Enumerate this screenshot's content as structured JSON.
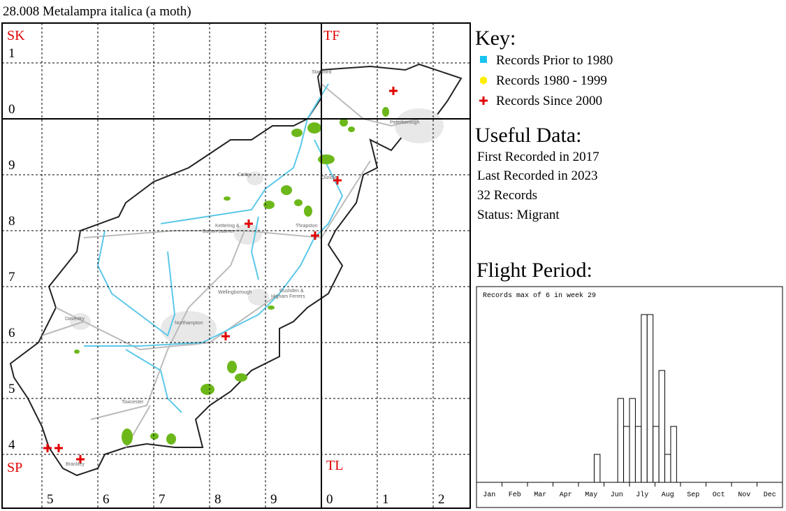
{
  "header": {
    "title": "28.008 Metalampra italica (a moth)"
  },
  "map": {
    "squares": {
      "SK": "SK",
      "TF": "TF",
      "SP": "SP",
      "TL": "TL"
    },
    "row_labels": [
      "1",
      "0",
      "9",
      "8",
      "7",
      "6",
      "5",
      "4"
    ],
    "col_labels": [
      "5",
      "6",
      "7",
      "8",
      "9",
      "0",
      "1",
      "2"
    ],
    "towns": [
      "Stamford",
      "Peterborough",
      "Corby",
      "Oundle",
      "Kettering &",
      "Burton Latimer",
      "Thrapston",
      "Wellingborough",
      "Rushden &",
      "Higham Ferrers",
      "Daventry",
      "Northampton",
      "Towcester",
      "Brackley"
    ]
  },
  "key": {
    "title": "Key:",
    "items": [
      "Records Prior to 1980",
      "Records 1980 - 1999",
      "Records Since 2000"
    ]
  },
  "useful_data": {
    "title": "Useful Data:",
    "lines": [
      "First Recorded in 2017",
      "Last Recorded in 2023",
      "32 Records",
      "Status: Migrant"
    ]
  },
  "chart_data": {
    "type": "histogram",
    "title": "Flight Period",
    "note": "Records max of 6 in week 29",
    "categories": [
      "Jan",
      "Feb",
      "Mar",
      "Apr",
      "May",
      "Jun",
      "Jly",
      "Aug",
      "Sep",
      "Oct",
      "Nov",
      "Dec"
    ],
    "weeks": [
      21,
      25,
      26,
      27,
      28,
      29,
      30,
      31,
      32,
      33,
      34
    ],
    "values": [
      1,
      3,
      2,
      3,
      2,
      6,
      6,
      2,
      4,
      1,
      2
    ],
    "xlim": [
      0,
      52
    ],
    "ylim": [
      0,
      7
    ]
  }
}
